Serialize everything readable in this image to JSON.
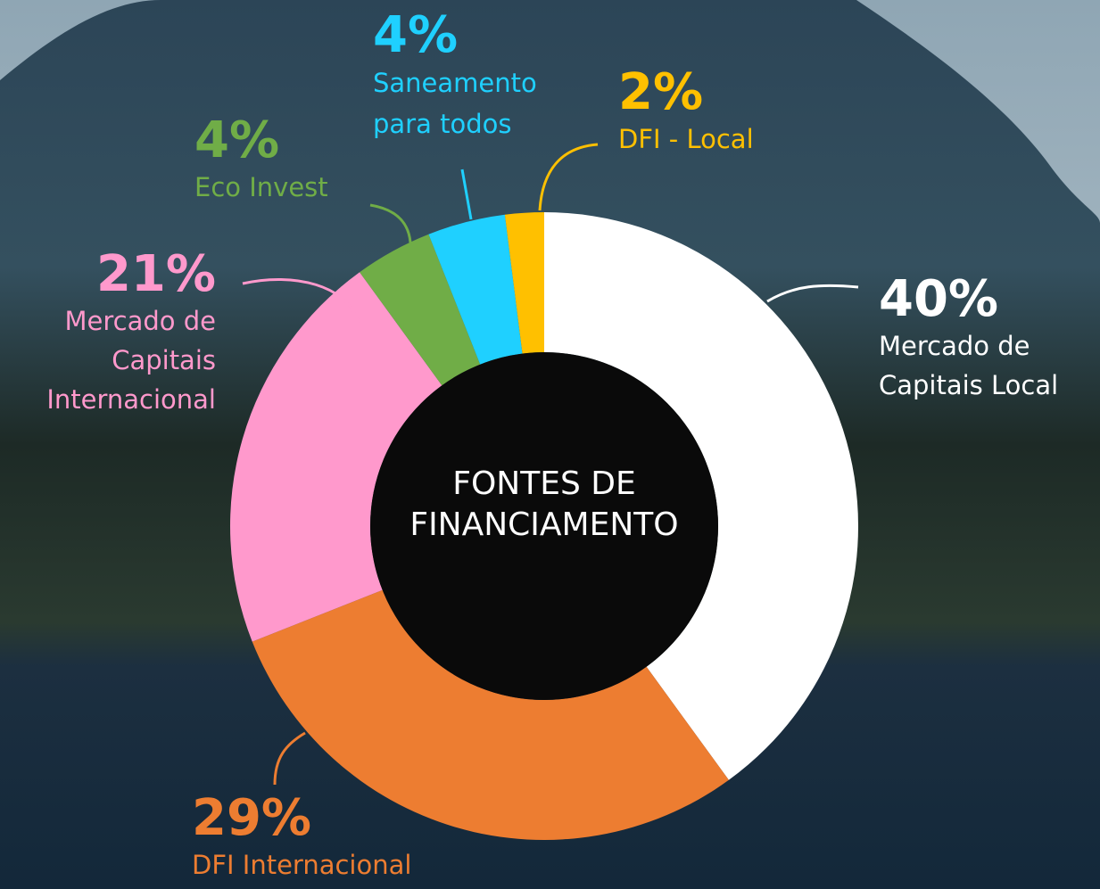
{
  "chart_data": {
    "type": "donut",
    "title": "FONTES DE FINANCIAMENTO",
    "categories": [
      "Mercado de Capitais Local",
      "DFI Internacional",
      "Mercado de Capitais Internacional",
      "Eco Invest",
      "Saneamento para todos",
      "DFI - Local"
    ],
    "values": [
      40,
      29,
      21,
      4,
      4,
      2
    ],
    "value_labels": [
      "40%",
      "29%",
      "21%",
      "4%",
      "4%",
      "2%"
    ],
    "colors": [
      "#ffffff",
      "#ed7d31",
      "#ff99cc",
      "#70ad47",
      "#1fd0ff",
      "#ffc000"
    ]
  }
}
